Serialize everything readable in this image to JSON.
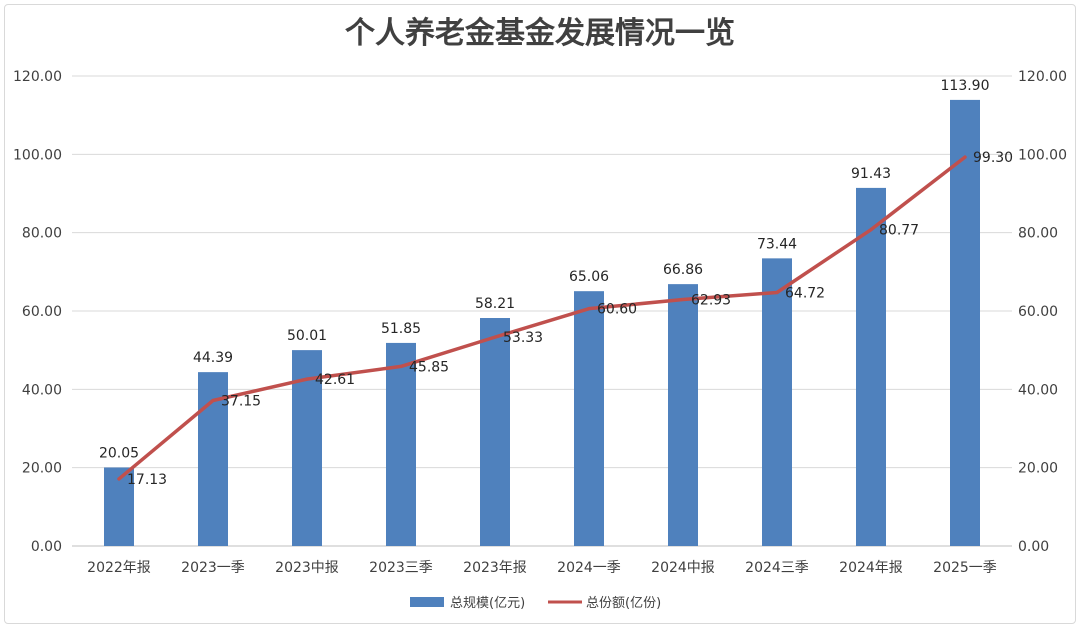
{
  "chart_data": {
    "type": "bar",
    "title": "个人养老金基金发展情况一览",
    "categories": [
      "2022年报",
      "2023一季",
      "2023中报",
      "2023三季",
      "2023年报",
      "2024一季",
      "2024中报",
      "2024三季",
      "2024年报",
      "2025一季"
    ],
    "series": [
      {
        "name": "总规模(亿元)",
        "type": "bar",
        "color": "#4f81bd",
        "axis": "left",
        "values": [
          20.05,
          44.39,
          50.01,
          51.85,
          58.21,
          65.06,
          66.86,
          73.44,
          91.43,
          113.9
        ],
        "labels": [
          "20.05",
          "44.39",
          "50.01",
          "51.85",
          "58.21",
          "65.06",
          "66.86",
          "73.44",
          "91.43",
          "113.90"
        ]
      },
      {
        "name": "总份额(亿份)",
        "type": "line",
        "color": "#c0504d",
        "axis": "right",
        "values": [
          17.13,
          37.15,
          42.61,
          45.85,
          53.33,
          60.6,
          62.93,
          64.72,
          80.77,
          99.3
        ],
        "labels": [
          "17.13",
          "37.15",
          "42.61",
          "45.85",
          "53.33",
          "60.60",
          "62.93",
          "64.72",
          "80.77",
          "99.30"
        ]
      }
    ],
    "y_left": {
      "min": 0,
      "max": 120,
      "ticks": [
        "0.00",
        "20.00",
        "40.00",
        "60.00",
        "80.00",
        "100.00",
        "120.00"
      ]
    },
    "y_right": {
      "min": 0,
      "max": 120,
      "ticks": [
        "0.00",
        "20.00",
        "40.00",
        "60.00",
        "80.00",
        "100.00",
        "120.00"
      ]
    },
    "grid": true,
    "legend_position": "bottom"
  }
}
